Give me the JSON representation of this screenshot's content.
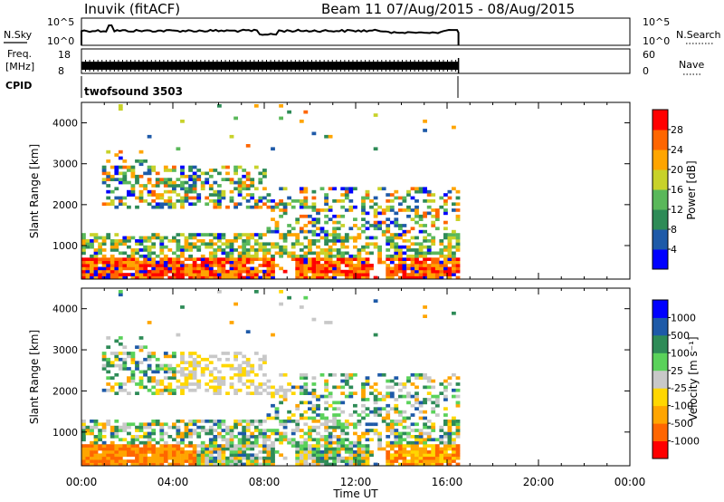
{
  "header": {
    "station": "Inuvik (fitACF)",
    "beam_date": "Beam 11 07/Aug/2015 - 08/Aug/2015"
  },
  "ancillary": {
    "nsky_label": "N.Sky",
    "nsearch_label": "N.Search",
    "freq_label_top": "Freq.",
    "freq_label_bottom": "[MHz]",
    "nave_label": "Nave",
    "cpid_label": "CPID",
    "cpid_value": "twofsound 3503",
    "noise_ticks_left": [
      "10^5",
      "10^0"
    ],
    "noise_ticks_right": [
      "10^5",
      "10^0"
    ],
    "freq_ticks": [
      "18",
      "8"
    ],
    "nave_ticks": [
      "60",
      "0"
    ]
  },
  "colors": {
    "power": [
      "#0000ff",
      "#1e5aa8",
      "#2e8b57",
      "#5ab85a",
      "#c8d22a",
      "#ffa500",
      "#ff6600",
      "#ff0000"
    ],
    "velocity": [
      "#ff0000",
      "#ff6600",
      "#ffa500",
      "#ffd700",
      "#c8c8c8",
      "#5ad25a",
      "#2e8b57",
      "#1e5aa8",
      "#0000ff"
    ]
  },
  "chart_data": [
    {
      "type": "heatmap",
      "title": "",
      "xlabel": "",
      "ylabel": "Slant Range [km]",
      "x_ticks": [
        "00:00",
        "04:00",
        "08:00",
        "12:00",
        "16:00",
        "20:00",
        "00:00"
      ],
      "xlim_hours": [
        0,
        24
      ],
      "ylim_km": [
        180,
        4500
      ],
      "y_ticks": [
        1000,
        2000,
        3000,
        4000
      ],
      "data_end_hour": 16.5,
      "colorbar": {
        "label": "Power [dB]",
        "ticks": [
          "4",
          "8",
          "12",
          "16",
          "20",
          "24",
          "28"
        ],
        "range": [
          0,
          32
        ]
      }
    },
    {
      "type": "heatmap",
      "title": "",
      "xlabel": "Time UT",
      "ylabel": "Slant Range [km]",
      "x_ticks": [
        "00:00",
        "04:00",
        "08:00",
        "12:00",
        "16:00",
        "20:00",
        "00:00"
      ],
      "xlim_hours": [
        0,
        24
      ],
      "ylim_km": [
        180,
        4500
      ],
      "y_ticks": [
        1000,
        2000,
        3000,
        4000
      ],
      "data_end_hour": 16.5,
      "colorbar": {
        "label": "Velocity [m s⁻¹]",
        "ticks": [
          "1000",
          "500",
          "100",
          "25",
          "-25",
          "-100",
          "-500",
          "-1000"
        ]
      }
    }
  ]
}
